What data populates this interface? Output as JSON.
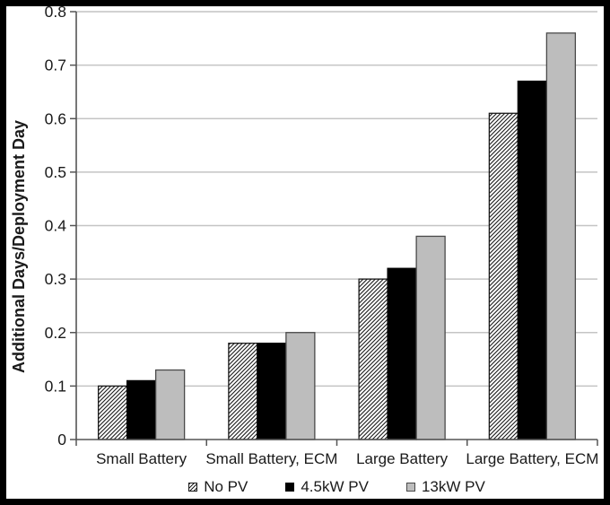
{
  "chart_data": {
    "type": "bar",
    "title": "",
    "xlabel": "",
    "ylabel": "Additional Days/Deployment Day",
    "ylim": [
      0,
      0.8
    ],
    "yticks": [
      "0",
      "0.1",
      "0.2",
      "0.3",
      "0.4",
      "0.5",
      "0.6",
      "0.7",
      "0.8"
    ],
    "grid": true,
    "legend_position": "bottom",
    "categories": [
      "Small Battery",
      "Small Battery, ECM",
      "Large Battery",
      "Large Battery, ECM"
    ],
    "series": [
      {
        "name": "No PV",
        "values": [
          0.1,
          0.18,
          0.3,
          0.61
        ],
        "fill": "hatch",
        "color": "#ffffff",
        "stroke": "#1a1a1a"
      },
      {
        "name": "4.5kW PV",
        "values": [
          0.11,
          0.18,
          0.32,
          0.67
        ],
        "fill": "solid",
        "color": "#000000",
        "stroke": "#000000"
      },
      {
        "name": "13kW PV",
        "values": [
          0.13,
          0.2,
          0.38,
          0.76
        ],
        "fill": "solid",
        "color": "#bdbdbd",
        "stroke": "#4a4a4a"
      }
    ]
  },
  "colors": {
    "grid": "#c4c4c4",
    "axis": "#555555",
    "frame": "#000000",
    "background": "#ffffff",
    "text": "#1a1a1a"
  }
}
